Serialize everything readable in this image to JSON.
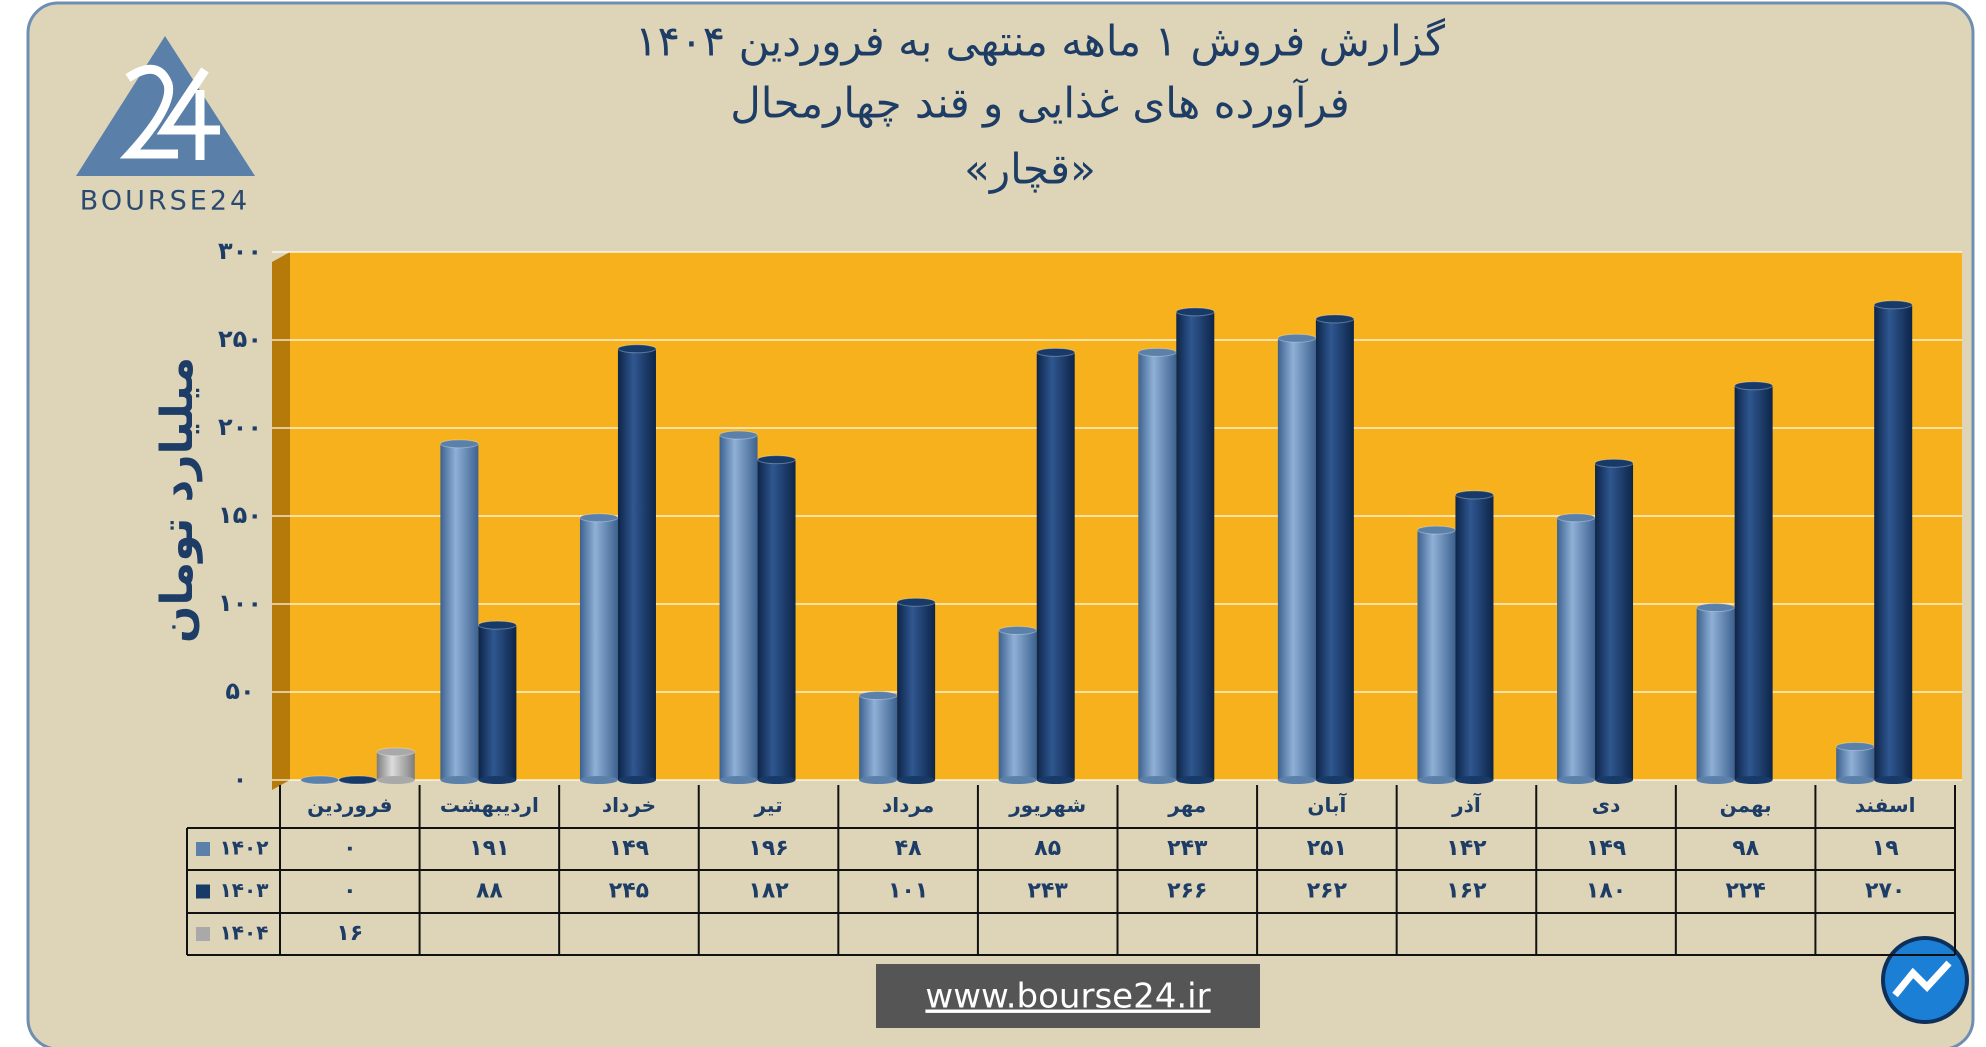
{
  "chart_data": {
    "type": "bar",
    "title": "گزارش  فروش ۱ ماهه منتهی به فروردین ۱۴۰۴",
    "subtitle": "فرآورده های غذایی و قند چهارمحال",
    "company": "«قچار»",
    "y_label": "میلیارد تومان",
    "logo_text": "BOURSE24",
    "website": "www.bourse24.ir",
    "categories": [
      "فروردین",
      "اردیبهشت",
      "خرداد",
      "تیر",
      "مرداد",
      "شهریور",
      "مهر",
      "آبان",
      "آذر",
      "دی",
      "بهمن",
      "اسفند"
    ],
    "series": [
      {
        "name": "۱۴۰۲",
        "color": "#5b80a9",
        "values": [
          0,
          191,
          149,
          196,
          48,
          85,
          243,
          251,
          142,
          149,
          98,
          19
        ],
        "value_labels": [
          "۰",
          "۱۹۱",
          "۱۴۹",
          "۱۹۶",
          "۴۸",
          "۸۵",
          "۲۴۳",
          "۲۵۱",
          "۱۴۲",
          "۱۴۹",
          "۹۸",
          "۱۹"
        ]
      },
      {
        "name": "۱۴۰۳",
        "color": "#173a68",
        "values": [
          0,
          88,
          245,
          182,
          101,
          243,
          266,
          262,
          162,
          180,
          224,
          270
        ],
        "value_labels": [
          "۰",
          "۸۸",
          "۲۴۵",
          "۱۸۲",
          "۱۰۱",
          "۲۴۳",
          "۲۶۶",
          "۲۶۲",
          "۱۶۲",
          "۱۸۰",
          "۲۲۴",
          "۲۷۰"
        ]
      },
      {
        "name": "۱۴۰۴",
        "color": "#a9a9a9",
        "values": [
          16,
          null,
          null,
          null,
          null,
          null,
          null,
          null,
          null,
          null,
          null,
          null
        ],
        "value_labels": [
          "۱۶",
          null,
          null,
          null,
          null,
          null,
          null,
          null,
          null,
          null,
          null,
          null
        ]
      }
    ],
    "ylim": [
      0,
      300
    ],
    "yticks": [
      {
        "value": 0,
        "label": "۰"
      },
      {
        "value": 50,
        "label": "۵۰"
      },
      {
        "value": 100,
        "label": "۱۰۰"
      },
      {
        "value": 150,
        "label": "۱۵۰"
      },
      {
        "value": 200,
        "label": "۲۰۰"
      },
      {
        "value": 250,
        "label": "۲۵۰"
      },
      {
        "value": 300,
        "label": "۳۰۰"
      }
    ],
    "grid": true
  }
}
